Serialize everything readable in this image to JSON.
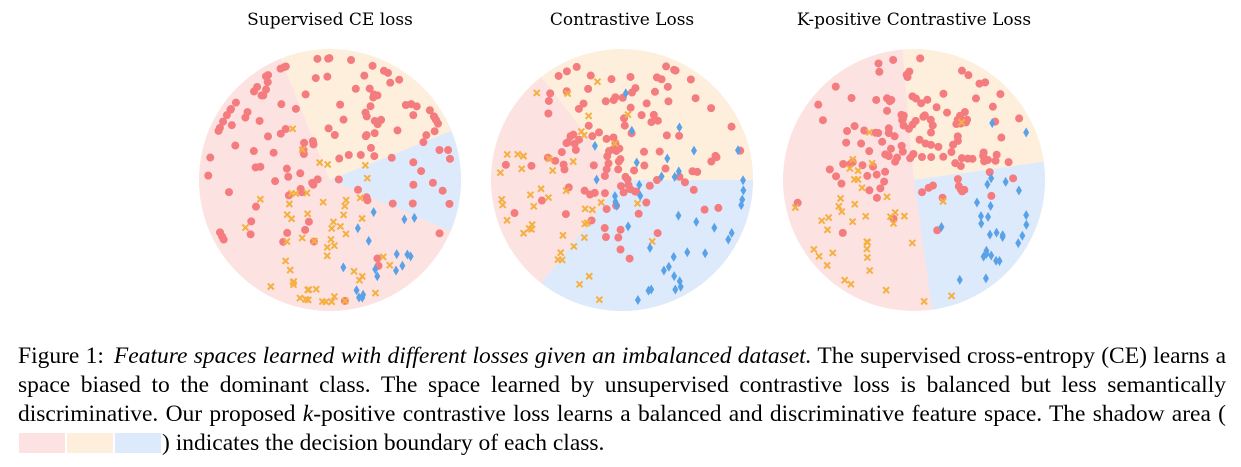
{
  "colors": {
    "red_region": "#fde2e2",
    "orange_region": "#fdefdc",
    "blue_region": "#ddeafb",
    "red_point": "#f47b7e",
    "orange_point": "#f5b041",
    "blue_point": "#5aa2e8"
  },
  "panels": [
    {
      "title": "Supervised CE loss",
      "regions": {
        "red": [
          -62,
          248
        ],
        "orange": [
          248,
          338
        ],
        "blue": [
          338,
          383
        ]
      },
      "samples": {
        "red": {
          "count": 130,
          "center": [
            0.0,
            -0.3
          ],
          "spread": [
            0.58,
            0.48
          ],
          "seed": 11
        },
        "orange": {
          "count": 55,
          "center": [
            -0.05,
            0.45
          ],
          "spread": [
            0.22,
            0.33
          ],
          "seed": 23
        },
        "blue": {
          "count": 18,
          "center": [
            0.42,
            0.55
          ],
          "spread": [
            0.15,
            0.2
          ],
          "seed": 37
        }
      }
    },
    {
      "title": "Contrastive Loss",
      "regions": {
        "red": [
          -52,
          232
        ],
        "orange": [
          232,
          360
        ],
        "blue": [
          0,
          128
        ]
      },
      "samples": {
        "red": {
          "count": 120,
          "center": [
            0.05,
            -0.25
          ],
          "spread": [
            0.4,
            0.35
          ],
          "seed": 41
        },
        "orange": {
          "count": 45,
          "center": [
            -0.45,
            0.15
          ],
          "spread": [
            0.35,
            0.45
          ],
          "seed": 53
        },
        "blue": {
          "count": 40,
          "center": [
            0.4,
            0.15
          ],
          "spread": [
            0.35,
            0.4
          ],
          "seed": 67
        }
      }
    },
    {
      "title": "K-positive Contrastive Loss",
      "regions": {
        "red": [
          -18,
          265
        ],
        "orange": [
          265,
          352
        ],
        "blue": [
          -8,
          82
        ]
      },
      "samples": {
        "red": {
          "count": 130,
          "center": [
            0.05,
            -0.35
          ],
          "spread": [
            0.42,
            0.32
          ],
          "seed": 71
        },
        "orange": {
          "count": 40,
          "center": [
            -0.35,
            0.3
          ],
          "spread": [
            0.3,
            0.35
          ],
          "seed": 83
        },
        "blue": {
          "count": 28,
          "center": [
            0.5,
            0.3
          ],
          "spread": [
            0.25,
            0.35
          ],
          "seed": 97
        }
      }
    }
  ],
  "caption": {
    "label": "Figure 1:",
    "emph": "Feature spaces learned with different losses given an imbalanced dataset.",
    "text_1": " The supervised cross-entropy (CE) learns a space biased to the dominant class. The space learned by unsupervised contrastive loss is balanced but less semantically discriminative. Our proposed ",
    "k": "k",
    "text_2": "-positive contrastive loss learns a balanced and discriminative feature space. The shadow area (",
    "text_3": ") indicates the decision boundary of each class."
  }
}
